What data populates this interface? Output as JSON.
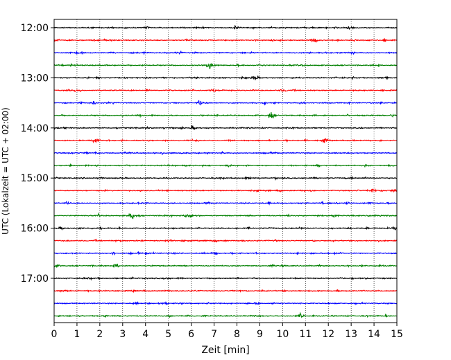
{
  "chart_data": {
    "type": "line",
    "subtype": "helicorder",
    "title": "",
    "xlabel": "Zeit  [min]",
    "ylabel": "UTC (Lokalzeit = UTC + 02:00)",
    "xlim": [
      0,
      15
    ],
    "x_ticks": [
      "0",
      "1",
      "2",
      "3",
      "4",
      "5",
      "6",
      "7",
      "8",
      "9",
      "10",
      "11",
      "12",
      "13",
      "14",
      "15"
    ],
    "y_ticks": [
      "12:00",
      "13:00",
      "14:00",
      "15:00",
      "16:00",
      "17:00"
    ],
    "grid": "vertical dotted at each minute",
    "trace_interval_minutes": 15,
    "start_time": "12:00",
    "trace_colors": [
      "#000000",
      "#ff0000",
      "#0000ff",
      "#008000"
    ],
    "traces": [
      {
        "start": "12:00",
        "color": "#000000",
        "events": [
          [
            4.0,
            2.2
          ],
          [
            8.0,
            3.5
          ],
          [
            12.9,
            2.0
          ]
        ]
      },
      {
        "start": "12:15",
        "color": "#ff0000",
        "events": [
          [
            0.1,
            1.8
          ],
          [
            11.4,
            2.8
          ]
        ]
      },
      {
        "start": "12:30",
        "color": "#0000ff",
        "events": [
          [
            13.0,
            2.0
          ]
        ]
      },
      {
        "start": "12:45",
        "color": "#008000",
        "events": [
          [
            6.8,
            4.5
          ]
        ]
      },
      {
        "start": "13:00",
        "color": "#000000",
        "events": [
          [
            8.8,
            4.5
          ]
        ]
      },
      {
        "start": "13:15",
        "color": "#ff0000",
        "events": [
          [
            7.0,
            2.0
          ],
          [
            10.0,
            1.5
          ]
        ]
      },
      {
        "start": "13:30",
        "color": "#0000ff",
        "events": [
          [
            1.7,
            2.5
          ],
          [
            6.4,
            3.2
          ]
        ]
      },
      {
        "start": "13:45",
        "color": "#008000",
        "events": [
          [
            9.5,
            5.5
          ]
        ]
      },
      {
        "start": "14:00",
        "color": "#000000",
        "events": [
          [
            6.1,
            2.5
          ]
        ]
      },
      {
        "start": "14:15",
        "color": "#ff0000",
        "events": [
          [
            1.8,
            6.0
          ],
          [
            11.8,
            2.8
          ]
        ]
      },
      {
        "start": "14:30",
        "color": "#0000ff",
        "events": [
          [
            3.2,
            2.0
          ]
        ]
      },
      {
        "start": "14:45",
        "color": "#008000",
        "events": [
          [
            11.6,
            1.8
          ]
        ]
      },
      {
        "start": "15:00",
        "color": "#000000",
        "events": [
          [
            2.0,
            1.4
          ]
        ]
      },
      {
        "start": "15:15",
        "color": "#ff0000",
        "events": [
          [
            14.0,
            2.2
          ],
          [
            14.9,
            2.4
          ]
        ]
      },
      {
        "start": "15:30",
        "color": "#0000ff",
        "events": [
          [
            0.6,
            1.5
          ]
        ]
      },
      {
        "start": "15:45",
        "color": "#008000",
        "events": [
          [
            3.4,
            5.0
          ],
          [
            5.9,
            5.5
          ],
          [
            12.2,
            3.0
          ]
        ]
      },
      {
        "start": "16:00",
        "color": "#000000",
        "events": [
          [
            0.3,
            1.5
          ],
          [
            14.9,
            1.5
          ]
        ]
      },
      {
        "start": "16:15",
        "color": "#ff0000",
        "events": [
          [
            5.0,
            1.2
          ]
        ]
      },
      {
        "start": "16:30",
        "color": "#0000ff",
        "events": [
          [
            7.0,
            1.0
          ]
        ]
      },
      {
        "start": "16:45",
        "color": "#008000",
        "events": [
          [
            2.7,
            2.0
          ]
        ]
      },
      {
        "start": "17:00",
        "color": "#000000",
        "events": [
          [
            4.9,
            1.2
          ]
        ]
      },
      {
        "start": "17:15",
        "color": "#ff0000",
        "events": [
          [
            0.5,
            1.0
          ]
        ]
      },
      {
        "start": "17:30",
        "color": "#0000ff",
        "events": [
          [
            4.7,
            1.2
          ]
        ]
      },
      {
        "start": "17:45",
        "color": "#008000",
        "events": [
          [
            10.8,
            3.8
          ]
        ]
      }
    ]
  }
}
